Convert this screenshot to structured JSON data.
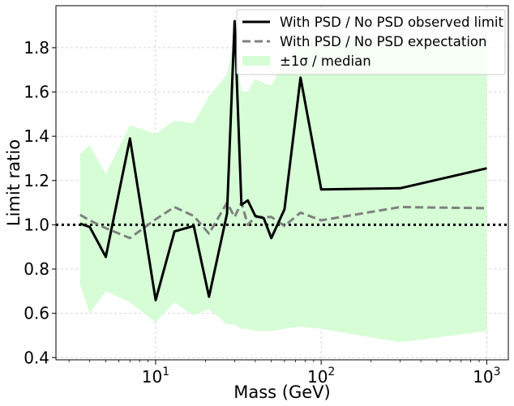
{
  "chart_data": {
    "type": "line",
    "x_scale": "log",
    "xlabel": "Mass (GeV)",
    "ylabel": "Limit ratio",
    "xlim": [
      2.5,
      1350
    ],
    "ylim": [
      0.39,
      1.99
    ],
    "grid": true,
    "legend_position": "top-right",
    "y_ticks": [
      0.4,
      0.6,
      0.8,
      1.0,
      1.2,
      1.4,
      1.6,
      1.8
    ],
    "y_tick_labels": [
      "0.4",
      "0.6",
      "0.8",
      "1.0",
      "1.2",
      "1.4",
      "1.6",
      "1.8"
    ],
    "x_ticks": [
      10,
      100,
      1000
    ],
    "x_tick_labels": [
      {
        "base": "10",
        "exp": "1"
      },
      {
        "base": "10",
        "exp": "2"
      },
      {
        "base": "10",
        "exp": "3"
      }
    ],
    "reference_line": {
      "y": 1.0,
      "style": "dotted",
      "color": "#000000"
    },
    "series": [
      {
        "name": "With PSD / No PSD observed limit",
        "style": "solid",
        "color": "#000000",
        "x": [
          3.5,
          4,
          5,
          7,
          10,
          13,
          17,
          21,
          27,
          30,
          33,
          36,
          40,
          45,
          50,
          60,
          75,
          100,
          300,
          1000
        ],
        "y": [
          1.005,
          0.99,
          0.855,
          1.39,
          0.66,
          0.97,
          0.995,
          0.675,
          1.05,
          1.92,
          1.09,
          1.11,
          1.04,
          1.03,
          0.94,
          1.07,
          1.665,
          1.16,
          1.165,
          1.255
        ]
      },
      {
        "name": "With PSD / No PSD expectation",
        "style": "dashed",
        "color": "#808080",
        "x": [
          3.5,
          4,
          5,
          7,
          10,
          13,
          17,
          21,
          27,
          30,
          33,
          36,
          40,
          45,
          50,
          60,
          75,
          100,
          300,
          1000
        ],
        "y": [
          1.045,
          1.02,
          0.985,
          0.94,
          1.025,
          1.08,
          1.04,
          0.96,
          1.1,
          1.035,
          1.1,
          1.0,
          1.035,
          1.035,
          1.035,
          0.995,
          1.055,
          1.02,
          1.08,
          1.075
        ]
      }
    ],
    "band": {
      "name": "±1σ / median",
      "color": "#d6fdd6",
      "x": [
        3.5,
        4,
        5,
        7,
        10,
        13,
        17,
        21,
        27,
        30,
        33,
        36,
        40,
        45,
        50,
        60,
        75,
        100,
        300,
        1000
      ],
      "upper": [
        1.32,
        1.36,
        1.23,
        1.45,
        1.41,
        1.47,
        1.46,
        1.58,
        1.68,
        1.84,
        1.6,
        1.6,
        1.66,
        1.64,
        1.63,
        1.74,
        1.8,
        1.84,
        1.84,
        1.84
      ],
      "lower": [
        0.73,
        0.6,
        0.7,
        0.65,
        0.56,
        0.65,
        0.59,
        0.62,
        0.55,
        0.55,
        0.53,
        0.53,
        0.52,
        0.52,
        0.52,
        0.53,
        0.54,
        0.53,
        0.47,
        0.52
      ]
    }
  }
}
